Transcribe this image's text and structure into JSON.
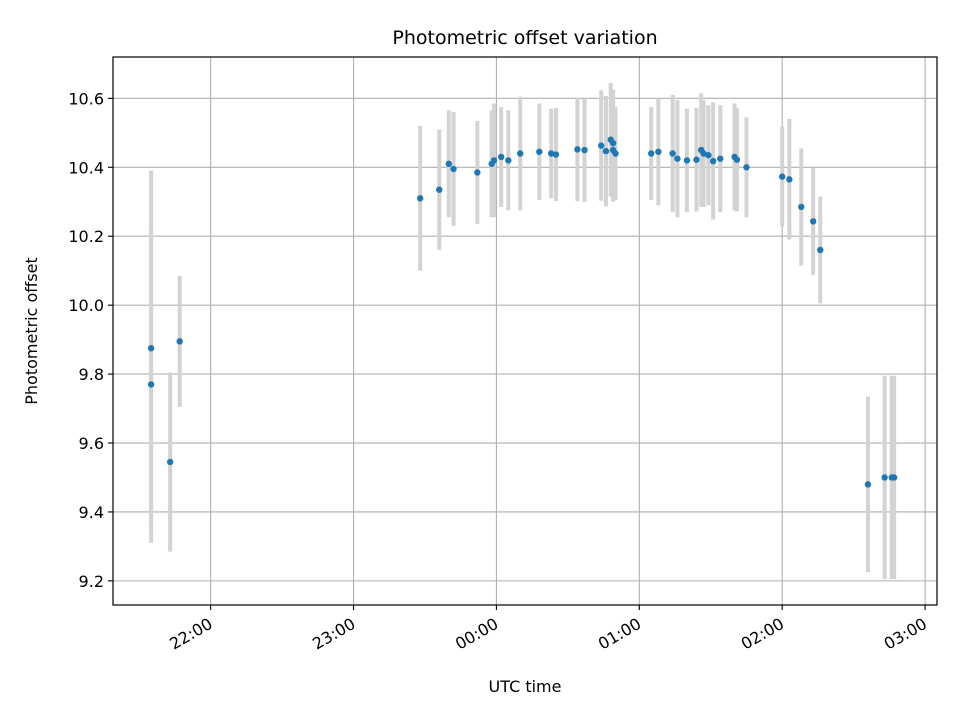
{
  "chart_data": {
    "type": "scatter",
    "title": "Photometric offset variation",
    "xlabel": "UTC time",
    "ylabel": "Photometric offset",
    "x_ticks": [
      "22:00",
      "23:00",
      "00:00",
      "01:00",
      "02:00",
      "03:00"
    ],
    "y_ticks": [
      "9.2",
      "9.4",
      "9.6",
      "9.8",
      "10.0",
      "10.2",
      "10.4",
      "10.6"
    ],
    "xlim": [
      "21:19",
      "03:05"
    ],
    "ylim": [
      9.13,
      10.72
    ],
    "grid": true,
    "colors": {
      "point": "#1f77b4",
      "errorbar": "#d3d3d3",
      "grid": "#b0b0b0"
    },
    "series": [
      {
        "x": [
          "21:35",
          "21:35",
          "21:43",
          "21:47",
          "23:28",
          "23:36",
          "23:40",
          "23:42",
          "23:52",
          "23:58",
          "23:59",
          "00:02",
          "00:05",
          "00:10",
          "00:18",
          "00:23",
          "00:25",
          "00:34",
          "00:37",
          "00:44",
          "00:46",
          "00:48",
          "00:49",
          "00:49",
          "00:50",
          "01:05",
          "01:08",
          "01:14",
          "01:16",
          "01:20",
          "01:24",
          "01:26",
          "01:27",
          "01:29",
          "01:31",
          "01:34",
          "01:40",
          "01:41",
          "01:45",
          "02:00",
          "02:03",
          "02:08",
          "02:13",
          "02:16",
          "02:36",
          "02:43",
          "02:46",
          "02:47"
        ],
        "y": [
          9.875,
          9.77,
          9.545,
          9.895,
          10.31,
          10.335,
          10.41,
          10.395,
          10.385,
          10.41,
          10.42,
          10.43,
          10.42,
          10.44,
          10.445,
          10.44,
          10.437,
          10.452,
          10.45,
          10.463,
          10.447,
          10.48,
          10.47,
          10.45,
          10.44,
          10.44,
          10.445,
          10.44,
          10.425,
          10.42,
          10.422,
          10.45,
          10.44,
          10.435,
          10.418,
          10.425,
          10.43,
          10.422,
          10.4,
          10.373,
          10.365,
          10.285,
          10.243,
          10.16,
          9.48,
          9.5,
          9.5,
          9.5
        ],
        "err": [
          0.515,
          0.46,
          0.26,
          0.19,
          0.21,
          0.175,
          0.155,
          0.165,
          0.15,
          0.155,
          0.165,
          0.145,
          0.145,
          0.165,
          0.14,
          0.13,
          0.135,
          0.15,
          0.15,
          0.16,
          0.16,
          0.165,
          0.155,
          0.15,
          0.135,
          0.135,
          0.155,
          0.17,
          0.17,
          0.15,
          0.15,
          0.165,
          0.155,
          0.145,
          0.17,
          0.155,
          0.155,
          0.15,
          0.145,
          0.145,
          0.175,
          0.17,
          0.155,
          0.155,
          0.255,
          0.295,
          0.295,
          0.295
        ]
      }
    ]
  }
}
